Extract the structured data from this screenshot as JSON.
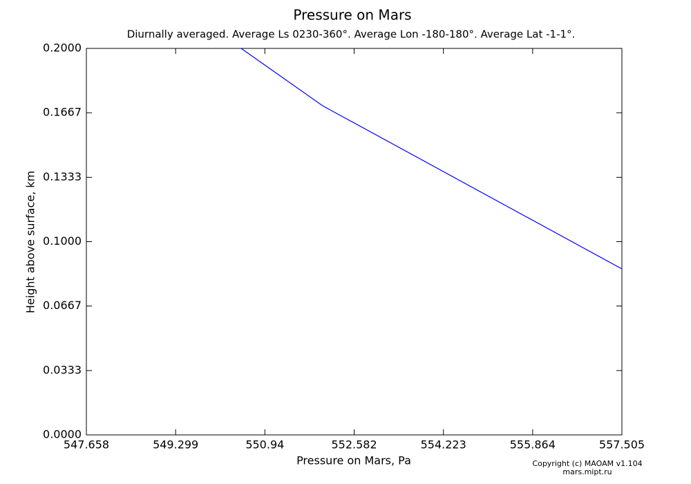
{
  "chart_data": {
    "type": "line",
    "title": "Pressure on Mars",
    "subtitle": "Diurnally averaged. Average Ls 0230-360°. Average Lon -180-180°. Average Lat -1-1°.",
    "xlabel": "Pressure on Mars, Pa",
    "ylabel": "Height above surface,  km",
    "x": [
      550.504,
      552.003,
      557.505
    ],
    "series": [
      {
        "color": "#0000ff",
        "values": [
          0.2,
          0.1703,
          0.0859
        ]
      }
    ],
    "xlim": [
      547.658,
      557.505
    ],
    "xticks": [
      547.658,
      549.299,
      550.94,
      552.582,
      554.223,
      555.864,
      557.505
    ],
    "ylim": [
      0,
      0.2
    ],
    "yticks": [
      {
        "value": 0,
        "label": "0.0000"
      },
      {
        "value": 0.0333,
        "label": "0.0333"
      },
      {
        "value": 0.0667,
        "label": "0.0667"
      },
      {
        "value": 0.1,
        "label": "0.1000"
      },
      {
        "value": 0.1333,
        "label": "0.1333"
      },
      {
        "value": 0.1667,
        "label": "0.1667"
      },
      {
        "value": 0.2,
        "label": "0.2000"
      }
    ],
    "grid": false,
    "copyright": "Copyright (c) MAOAM v1.104",
    "site": "mars.mipt.ru"
  }
}
